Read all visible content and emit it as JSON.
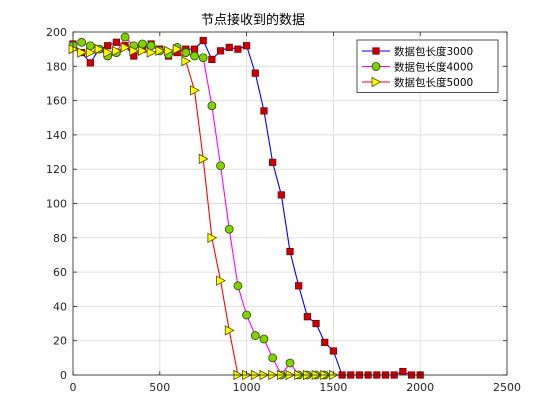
{
  "chart_data": {
    "type": "line",
    "title": "节点接收到的数据",
    "xlabel": "",
    "ylabel": "",
    "xlim": [
      0,
      2500
    ],
    "ylim": [
      0,
      200
    ],
    "xticks": [
      0,
      500,
      1000,
      1500,
      2000,
      2500
    ],
    "yticks": [
      0,
      20,
      40,
      60,
      80,
      100,
      120,
      140,
      160,
      180,
      200
    ],
    "grid": true,
    "legend_position": "top-right",
    "series": [
      {
        "name": "数据包长度3000",
        "color": "#0000ff",
        "marker": "square",
        "marker_fill": "#cc0000",
        "x": [
          0,
          50,
          100,
          150,
          200,
          250,
          300,
          350,
          400,
          450,
          500,
          550,
          600,
          650,
          700,
          750,
          800,
          850,
          900,
          950,
          1000,
          1050,
          1100,
          1150,
          1200,
          1250,
          1300,
          1350,
          1400,
          1450,
          1500,
          1550,
          1600,
          1650,
          1700,
          1750,
          1800,
          1850,
          1900,
          1950,
          2000
        ],
        "y": [
          193,
          188,
          182,
          190,
          192,
          194,
          192,
          186,
          190,
          193,
          190,
          186,
          188,
          190,
          190,
          195,
          184,
          189,
          191,
          190,
          192,
          176,
          154,
          124,
          105,
          72,
          52,
          34,
          30,
          19,
          14,
          0,
          0,
          0,
          0,
          0,
          0,
          0,
          2,
          0,
          0
        ]
      },
      {
        "name": "数据包长度4000",
        "color": "#ff00ff",
        "marker": "circle",
        "marker_fill": "#7fd300",
        "x": [
          0,
          50,
          100,
          150,
          200,
          250,
          300,
          350,
          400,
          450,
          500,
          550,
          600,
          650,
          700,
          750,
          800,
          850,
          900,
          950,
          1000,
          1050,
          1100,
          1150,
          1200,
          1250,
          1300,
          1350,
          1400,
          1450
        ],
        "y": [
          192,
          194,
          192,
          190,
          186,
          188,
          197,
          192,
          193,
          192,
          189,
          187,
          191,
          188,
          186,
          185,
          157,
          122,
          85,
          52,
          35,
          23,
          21,
          10,
          0,
          7,
          0,
          0,
          0,
          0
        ]
      },
      {
        "name": "数据包长度5000",
        "color": "#ff0000",
        "marker": "triangle-right",
        "marker_fill": "#ffff00",
        "x": [
          0,
          50,
          100,
          150,
          200,
          250,
          300,
          350,
          400,
          450,
          500,
          550,
          600,
          650,
          700,
          750,
          800,
          850,
          900,
          950,
          1000,
          1050,
          1100,
          1150,
          1200,
          1250,
          1300,
          1350,
          1400,
          1450,
          1500
        ],
        "y": [
          190,
          188,
          188,
          190,
          188,
          189,
          191,
          189,
          189,
          188,
          189,
          189,
          190,
          183,
          166,
          126,
          80,
          55,
          26,
          0,
          0,
          0,
          0,
          0,
          0,
          0,
          0,
          0,
          0,
          0,
          0
        ]
      }
    ]
  }
}
